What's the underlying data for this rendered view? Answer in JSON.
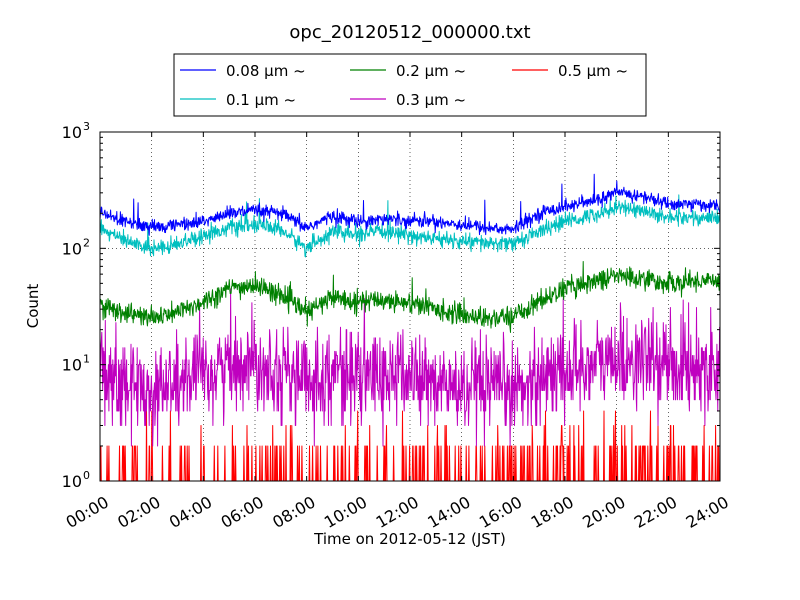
{
  "chart_data": {
    "type": "line",
    "title": "opc_20120512_000000.txt",
    "xlabel": "Time on 2012-05-12 (JST)",
    "ylabel": "Count",
    "yscale": "log",
    "ylim": [
      1,
      1000
    ],
    "xlim": [
      "00:00",
      "24:00"
    ],
    "x_ticks": [
      "00:00",
      "02:00",
      "04:00",
      "06:00",
      "08:00",
      "10:00",
      "12:00",
      "14:00",
      "16:00",
      "18:00",
      "20:00",
      "22:00",
      "24:00"
    ],
    "y_ticks": [
      {
        "value": 1,
        "base": "10",
        "exp": "0"
      },
      {
        "value": 10,
        "base": "10",
        "exp": "1"
      },
      {
        "value": 100,
        "base": "10",
        "exp": "2"
      },
      {
        "value": 1000,
        "base": "10",
        "exp": "3"
      }
    ],
    "grid": true,
    "legend_position": "top",
    "x": [
      "00:00",
      "01:00",
      "02:00",
      "03:00",
      "04:00",
      "05:00",
      "06:00",
      "07:00",
      "08:00",
      "09:00",
      "10:00",
      "11:00",
      "12:00",
      "13:00",
      "14:00",
      "15:00",
      "16:00",
      "17:00",
      "18:00",
      "19:00",
      "20:00",
      "21:00",
      "22:00",
      "23:00",
      "24:00"
    ],
    "series": [
      {
        "name": "0.08 μm ~",
        "color": "#0000ff",
        "noise": 0.11,
        "values": [
          200,
          170,
          150,
          160,
          170,
          200,
          210,
          200,
          150,
          190,
          170,
          180,
          175,
          170,
          160,
          150,
          145,
          200,
          230,
          250,
          300,
          280,
          240,
          240,
          230
        ]
      },
      {
        "name": "0.1 μm ~",
        "color": "#00bfbf",
        "noise": 0.13,
        "values": [
          150,
          115,
          100,
          110,
          130,
          150,
          160,
          145,
          100,
          140,
          130,
          140,
          130,
          120,
          115,
          110,
          110,
          140,
          170,
          190,
          230,
          210,
          185,
          185,
          180
        ]
      },
      {
        "name": "0.2 μm ~",
        "color": "#008000",
        "noise": 0.17,
        "values": [
          32,
          28,
          25,
          28,
          35,
          45,
          48,
          40,
          28,
          38,
          35,
          36,
          34,
          30,
          27,
          25,
          26,
          35,
          45,
          52,
          58,
          55,
          50,
          52,
          55
        ]
      },
      {
        "name": "0.3 μm ~",
        "color": "#bf00bf",
        "noise": 0.45,
        "values": [
          8,
          7,
          6,
          7,
          8,
          10,
          11,
          9,
          7,
          9,
          8,
          8,
          8,
          7,
          6,
          6,
          6,
          8,
          9,
          10,
          11,
          11,
          10,
          10,
          10
        ]
      },
      {
        "name": "0.5 μm ~",
        "color": "#ff0000",
        "noise": 0.5,
        "values": [
          1.2,
          1.1,
          1.1,
          1.1,
          1.1,
          1.2,
          1.3,
          1.2,
          1.1,
          1.1,
          1.1,
          1.1,
          1.1,
          1.1,
          1.1,
          1.1,
          1.1,
          1.3,
          1.4,
          1.4,
          1.5,
          1.4,
          1.4,
          1.4,
          1.4
        ]
      }
    ]
  }
}
